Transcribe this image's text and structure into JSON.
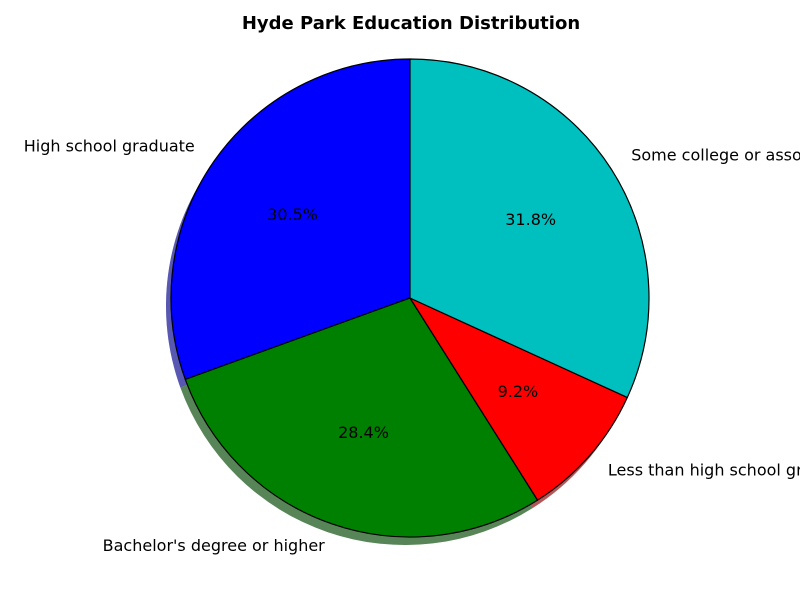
{
  "chart_data": {
    "type": "pie",
    "title": "Hyde Park Education Distribution",
    "slices": [
      {
        "label": "High school graduate",
        "value": 30.5,
        "pct_label": "30.5%",
        "color": "#0000ff"
      },
      {
        "label": "Bachelor's degree or higher",
        "value": 28.4,
        "pct_label": "28.4%",
        "color": "#008000"
      },
      {
        "label": "Less than high school graduate",
        "value": 9.2,
        "pct_label": "9.2%",
        "color": "#ff0000"
      },
      {
        "label": "Some college or associate's degree",
        "value": 31.8,
        "pct_label": "31.8%",
        "color": "#00bfbf"
      }
    ],
    "start_angle_deg": 90,
    "direction": "counterclockwise",
    "shadow": true,
    "edge_color": "#000000"
  }
}
